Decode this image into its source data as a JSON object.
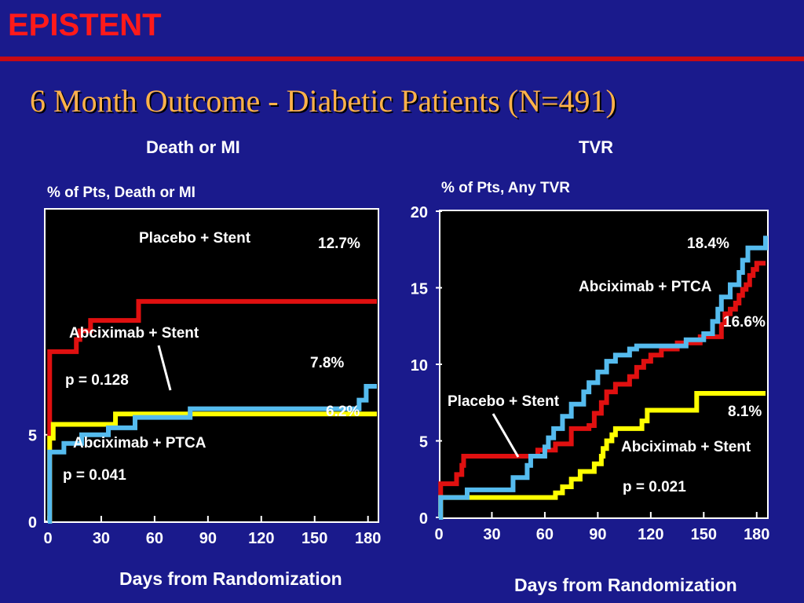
{
  "slide": {
    "brand": "EPISTENT",
    "title": "6 Month Outcome - Diabetic Patients (N=491)",
    "colors": {
      "background": "#1a1a8c",
      "brand": "#ff1a1a",
      "title": "#ffb24a",
      "rule": "#c80a14",
      "plot_bg": "#000000"
    }
  },
  "chart_data": [
    {
      "type": "line",
      "step": true,
      "title": "Death or MI",
      "ylabel": "% of Pts, Death or MI",
      "xlabel": "Days from Randomization",
      "xlim": [
        0,
        185
      ],
      "ylim": [
        0,
        18
      ],
      "xticks": [
        0,
        30,
        60,
        90,
        120,
        150,
        180
      ],
      "yticks": [
        0,
        5
      ],
      "series": [
        {
          "name": "Placebo + Stent",
          "color": "#e01010",
          "x": [
            0,
            1,
            15,
            16,
            18,
            24,
            50,
            51,
            185
          ],
          "y": [
            0,
            9.8,
            9.8,
            10.5,
            11.0,
            11.6,
            11.6,
            12.7,
            12.7
          ],
          "end_label": "12.7%"
        },
        {
          "name": "Abciximab + Stent",
          "color": "#ffff00",
          "x": [
            0,
            1,
            3,
            37,
            38,
            185
          ],
          "y": [
            0,
            4.8,
            5.6,
            5.6,
            6.2,
            6.2
          ],
          "end_label": "6.2%"
        },
        {
          "name": "Abciximab + PTCA",
          "color": "#55bbee",
          "x": [
            0,
            1,
            8,
            9,
            18,
            19,
            33,
            34,
            48,
            49,
            79,
            80,
            174,
            175,
            178,
            179,
            185
          ],
          "y": [
            0,
            4.0,
            4.0,
            4.5,
            4.5,
            5.0,
            5.0,
            5.4,
            5.4,
            6.0,
            6.0,
            6.5,
            6.5,
            7.0,
            7.0,
            7.8,
            7.8
          ],
          "end_label": "7.8%"
        }
      ],
      "annotations": [
        "p = 0.128",
        "p = 0.041"
      ]
    },
    {
      "type": "line",
      "step": true,
      "title": "TVR",
      "ylabel": "% of Pts, Any TVR",
      "xlabel": "Days from Randomization",
      "xlim": [
        0,
        185
      ],
      "ylim": [
        0,
        20
      ],
      "xticks": [
        0,
        30,
        60,
        90,
        120,
        150,
        180
      ],
      "yticks": [
        0,
        5,
        10,
        15,
        20
      ],
      "series": [
        {
          "name": "Placebo + Stent",
          "color": "#e01010",
          "x": [
            0,
            1,
            8,
            10,
            13,
            14,
            50,
            56,
            60,
            66,
            75,
            85,
            88,
            92,
            95,
            100,
            108,
            112,
            116,
            120,
            126,
            135,
            148,
            160,
            162,
            165,
            168,
            170,
            172,
            174,
            176,
            178,
            180,
            185
          ],
          "y": [
            0,
            2.2,
            2.2,
            2.8,
            3.4,
            4.0,
            4.0,
            4.4,
            4.4,
            4.8,
            5.8,
            6.0,
            6.8,
            7.5,
            8.2,
            8.7,
            9.2,
            9.8,
            10.2,
            10.6,
            11.0,
            11.4,
            11.8,
            12.6,
            13.3,
            13.6,
            14.0,
            14.5,
            14.9,
            15.2,
            15.8,
            16.2,
            16.6,
            16.6
          ],
          "end_label": "16.6%"
        },
        {
          "name": "Abciximab + Stent",
          "color": "#ffff00",
          "x": [
            0,
            1,
            64,
            66,
            70,
            75,
            80,
            88,
            92,
            93,
            95,
            98,
            100,
            105,
            115,
            118,
            145,
            146,
            185
          ],
          "y": [
            0,
            1.3,
            1.3,
            1.6,
            2.0,
            2.5,
            3.0,
            3.5,
            4.0,
            4.5,
            5.0,
            5.4,
            5.8,
            5.8,
            6.3,
            7.0,
            7.0,
            8.1,
            8.1
          ],
          "end_label": "8.1%"
        },
        {
          "name": "Abciximab + PTCA",
          "color": "#55bbee",
          "x": [
            0,
            1,
            15,
            16,
            40,
            42,
            50,
            52,
            60,
            62,
            65,
            70,
            75,
            82,
            85,
            90,
            95,
            100,
            108,
            112,
            120,
            130,
            140,
            150,
            155,
            158,
            160,
            165,
            170,
            172,
            175,
            185
          ],
          "y": [
            0,
            1.3,
            1.3,
            1.8,
            1.8,
            2.6,
            3.4,
            4.0,
            4.6,
            5.2,
            5.8,
            6.6,
            7.4,
            8.2,
            8.8,
            9.5,
            10.2,
            10.6,
            11.0,
            11.2,
            11.2,
            11.2,
            11.6,
            12.0,
            12.8,
            13.6,
            14.4,
            15.2,
            16.0,
            16.8,
            17.6,
            18.4
          ],
          "end_label": "18.4%"
        }
      ],
      "annotations": [
        "p = 0.021"
      ]
    }
  ]
}
